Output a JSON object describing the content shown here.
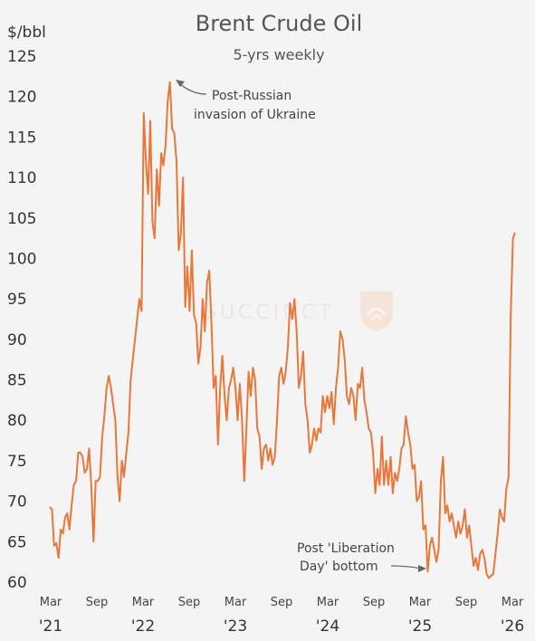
{
  "chart_data": {
    "type": "line",
    "title": "Brent Crude Oil",
    "subtitle": "5-yrs weekly",
    "ylabel": "$/bbl",
    "ylim": [
      60,
      125
    ],
    "yticks": [
      60,
      65,
      70,
      75,
      80,
      85,
      90,
      95,
      100,
      105,
      110,
      115,
      120,
      125
    ],
    "x_tick_months": [
      "Mar",
      "Sep",
      "Mar",
      "Sep",
      "Mar",
      "Sep",
      "Mar",
      "Sep",
      "Mar",
      "Sep",
      "Mar"
    ],
    "x_tick_years": [
      "'21",
      "'22",
      "'23",
      "'24",
      "'25",
      "'26"
    ],
    "grid": false,
    "line_color": "#e8783a",
    "series": [
      {
        "values": [
          [
            0.0,
            69.3
          ],
          [
            0.15,
            69.0
          ],
          [
            0.3,
            64.5
          ],
          [
            0.45,
            64.8
          ],
          [
            0.6,
            63.0
          ],
          [
            0.75,
            66.5
          ],
          [
            0.9,
            66.0
          ],
          [
            1.05,
            68.0
          ],
          [
            1.2,
            68.5
          ],
          [
            1.35,
            66.5
          ],
          [
            1.5,
            69.5
          ],
          [
            1.65,
            72.0
          ],
          [
            1.8,
            72.5
          ],
          [
            1.95,
            76.0
          ],
          [
            2.1,
            76.0
          ],
          [
            2.25,
            75.5
          ],
          [
            2.4,
            73.5
          ],
          [
            2.55,
            74.0
          ],
          [
            2.7,
            76.5
          ],
          [
            2.85,
            72.0
          ],
          [
            3.0,
            65.0
          ],
          [
            3.15,
            72.5
          ],
          [
            3.3,
            72.5
          ],
          [
            3.45,
            73.0
          ],
          [
            3.6,
            78.0
          ],
          [
            3.75,
            80.5
          ],
          [
            3.9,
            84.0
          ],
          [
            4.05,
            85.5
          ],
          [
            4.2,
            84.0
          ],
          [
            4.35,
            82.0
          ],
          [
            4.5,
            80.0
          ],
          [
            4.65,
            73.0
          ],
          [
            4.8,
            70.0
          ],
          [
            4.95,
            75.0
          ],
          [
            5.1,
            73.0
          ],
          [
            5.25,
            76.0
          ],
          [
            5.4,
            78.5
          ],
          [
            5.55,
            85.0
          ],
          [
            5.7,
            87.5
          ],
          [
            5.85,
            90.0
          ],
          [
            6.0,
            92.5
          ],
          [
            6.15,
            95.0
          ],
          [
            6.3,
            93.5
          ],
          [
            6.45,
            118.0
          ],
          [
            6.6,
            112.0
          ],
          [
            6.75,
            108.0
          ],
          [
            6.9,
            117.0
          ],
          [
            7.05,
            104.5
          ],
          [
            7.2,
            102.5
          ],
          [
            7.35,
            111.0
          ],
          [
            7.5,
            106.5
          ],
          [
            7.65,
            113.0
          ],
          [
            7.8,
            111.5
          ],
          [
            7.95,
            114.0
          ],
          [
            8.1,
            119.5
          ],
          [
            8.25,
            121.8
          ],
          [
            8.4,
            116.0
          ],
          [
            8.55,
            115.5
          ],
          [
            8.7,
            112.0
          ],
          [
            8.85,
            101.0
          ],
          [
            9.0,
            103.0
          ],
          [
            9.15,
            110.0
          ],
          [
            9.3,
            94.0
          ],
          [
            9.45,
            99.0
          ],
          [
            9.6,
            93.5
          ],
          [
            9.75,
            101.0
          ],
          [
            9.9,
            93.0
          ],
          [
            10.05,
            92.0
          ],
          [
            10.2,
            87.0
          ],
          [
            10.35,
            89.0
          ],
          [
            10.5,
            95.0
          ],
          [
            10.65,
            91.0
          ],
          [
            10.8,
            97.0
          ],
          [
            10.95,
            98.5
          ],
          [
            11.1,
            92.0
          ],
          [
            11.25,
            84.0
          ],
          [
            11.4,
            85.5
          ],
          [
            11.55,
            77.0
          ],
          [
            11.7,
            84.0
          ],
          [
            11.85,
            88.0
          ],
          [
            12.0,
            83.0
          ],
          [
            12.15,
            80.0
          ],
          [
            12.3,
            84.0
          ],
          [
            12.45,
            85.0
          ],
          [
            12.6,
            86.5
          ],
          [
            12.75,
            84.0
          ],
          [
            12.9,
            80.0
          ],
          [
            13.05,
            84.5
          ],
          [
            13.2,
            80.0
          ],
          [
            13.35,
            72.5
          ],
          [
            13.5,
            79.0
          ],
          [
            13.65,
            86.0
          ],
          [
            13.8,
            83.0
          ],
          [
            13.95,
            86.5
          ],
          [
            14.1,
            85.0
          ],
          [
            14.25,
            79.0
          ],
          [
            14.4,
            78.0
          ],
          [
            14.55,
            74.0
          ],
          [
            14.7,
            76.5
          ],
          [
            14.85,
            77.0
          ],
          [
            15.0,
            75.0
          ],
          [
            15.15,
            76.5
          ],
          [
            15.3,
            74.5
          ],
          [
            15.45,
            75.5
          ],
          [
            15.6,
            80.0
          ],
          [
            15.75,
            85.5
          ],
          [
            15.9,
            86.5
          ],
          [
            16.05,
            84.5
          ],
          [
            16.2,
            86.0
          ],
          [
            16.35,
            89.0
          ],
          [
            16.5,
            94.5
          ],
          [
            16.65,
            92.5
          ],
          [
            16.8,
            95.0
          ],
          [
            16.95,
            91.0
          ],
          [
            17.1,
            84.0
          ],
          [
            17.25,
            85.5
          ],
          [
            17.4,
            88.5
          ],
          [
            17.55,
            82.0
          ],
          [
            17.7,
            80.0
          ],
          [
            17.85,
            76.0
          ],
          [
            18.0,
            77.0
          ],
          [
            18.15,
            79.0
          ],
          [
            18.3,
            77.5
          ],
          [
            18.45,
            79.0
          ],
          [
            18.6,
            78.5
          ],
          [
            18.75,
            83.0
          ],
          [
            18.9,
            81.0
          ],
          [
            19.05,
            83.0
          ],
          [
            19.2,
            81.5
          ],
          [
            19.35,
            83.5
          ],
          [
            19.5,
            79.5
          ],
          [
            19.65,
            84.0
          ],
          [
            19.8,
            86.5
          ],
          [
            19.95,
            91.0
          ],
          [
            20.1,
            90.0
          ],
          [
            20.25,
            87.5
          ],
          [
            20.4,
            83.0
          ],
          [
            20.55,
            82.0
          ],
          [
            20.7,
            84.0
          ],
          [
            20.85,
            83.0
          ],
          [
            21.0,
            80.0
          ],
          [
            21.15,
            84.5
          ],
          [
            21.3,
            84.0
          ],
          [
            21.45,
            86.5
          ],
          [
            21.6,
            82.5
          ],
          [
            21.75,
            81.0
          ],
          [
            21.9,
            79.0
          ],
          [
            22.05,
            78.5
          ],
          [
            22.2,
            76.0
          ],
          [
            22.35,
            71.0
          ],
          [
            22.5,
            74.0
          ],
          [
            22.65,
            72.0
          ],
          [
            22.8,
            78.0
          ],
          [
            22.95,
            72.0
          ],
          [
            23.1,
            75.0
          ],
          [
            23.25,
            72.0
          ],
          [
            23.4,
            75.5
          ],
          [
            23.55,
            71.0
          ],
          [
            23.7,
            73.5
          ],
          [
            23.85,
            72.5
          ],
          [
            24.0,
            74.0
          ],
          [
            24.15,
            76.5
          ],
          [
            24.3,
            77.0
          ],
          [
            24.45,
            80.5
          ],
          [
            24.6,
            78.5
          ],
          [
            24.75,
            77.0
          ],
          [
            24.9,
            74.0
          ],
          [
            25.05,
            74.5
          ],
          [
            25.2,
            70.0
          ],
          [
            25.35,
            70.5
          ],
          [
            25.5,
            72.5
          ],
          [
            25.65,
            66.5
          ],
          [
            25.8,
            67.0
          ],
          [
            25.95,
            61.3
          ],
          [
            26.1,
            64.5
          ],
          [
            26.25,
            65.5
          ],
          [
            26.4,
            64.0
          ],
          [
            26.55,
            62.5
          ],
          [
            26.7,
            64.0
          ],
          [
            26.85,
            72.5
          ],
          [
            27.0,
            75.5
          ],
          [
            27.15,
            68.5
          ],
          [
            27.3,
            69.5
          ],
          [
            27.45,
            67.5
          ],
          [
            27.6,
            68.5
          ],
          [
            27.75,
            67.0
          ],
          [
            27.9,
            65.5
          ],
          [
            28.05,
            67.5
          ],
          [
            28.2,
            66.0
          ],
          [
            28.35,
            67.0
          ],
          [
            28.5,
            69.0
          ],
          [
            28.65,
            65.5
          ],
          [
            28.8,
            67.0
          ],
          [
            28.95,
            64.5
          ],
          [
            29.1,
            62.0
          ],
          [
            29.25,
            63.0
          ],
          [
            29.4,
            61.5
          ],
          [
            29.55,
            63.5
          ],
          [
            29.7,
            64.0
          ],
          [
            29.85,
            63.0
          ],
          [
            30.0,
            61.0
          ],
          [
            30.15,
            60.5
          ],
          [
            30.3,
            60.8
          ],
          [
            30.45,
            61.0
          ],
          [
            30.6,
            63.5
          ],
          [
            30.75,
            66.0
          ],
          [
            30.9,
            69.0
          ],
          [
            31.05,
            68.0
          ],
          [
            31.2,
            67.5
          ],
          [
            31.35,
            71.5
          ],
          [
            31.5,
            73.0
          ],
          [
            31.65,
            93.0
          ],
          [
            31.8,
            102.5
          ],
          [
            31.95,
            103.2
          ]
        ]
      }
    ],
    "annotations": [
      {
        "text_lines": [
          "Post-Russian",
          "invasion of Ukraine"
        ]
      },
      {
        "text_lines": [
          "Post 'Liberation",
          "Day' bottom"
        ]
      }
    ]
  },
  "watermark": "SUCCINCT"
}
